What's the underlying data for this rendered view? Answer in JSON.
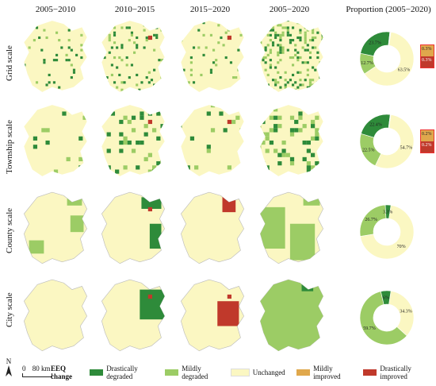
{
  "columns": [
    "2005−2010",
    "2010−2015",
    "2015−2020",
    "2005−2020",
    "Proportion (2005−2020)"
  ],
  "rows": [
    "Grid scale",
    "Township scale",
    "County scale",
    "City scale"
  ],
  "legend": {
    "title": "EEQ change",
    "items": [
      {
        "label": "Drastically degraded",
        "color": "#2e8b3a"
      },
      {
        "label": "Mildly degraded",
        "color": "#9ccc65"
      },
      {
        "label": "Unchanged",
        "color": "#fbf7c2"
      },
      {
        "label": "Mildly improved",
        "color": "#e0a84c"
      },
      {
        "label": "Drastically improved",
        "color": "#c0392b"
      }
    ]
  },
  "scale_bar": {
    "zero": "0",
    "label": "80 km"
  },
  "north_label": "N",
  "chart_data": [
    {
      "type": "pie",
      "name": "Grid scale",
      "slices": [
        {
          "label": "Unchanged",
          "value": 63.5,
          "text": "63.5%"
        },
        {
          "label": "Mildly degraded",
          "value": 12.7,
          "text": "12.7%"
        },
        {
          "label": "Drastically degraded",
          "value": 23.7,
          "text": "23.7%"
        },
        {
          "label": "Mildly improved",
          "value": 0.3,
          "text": "0.3%"
        },
        {
          "label": "Drastically improved",
          "value": 0.3,
          "text": "0.3%"
        }
      ]
    },
    {
      "type": "pie",
      "name": "Township scale",
      "slices": [
        {
          "label": "Unchanged",
          "value": 54.7,
          "text": "54.7%"
        },
        {
          "label": "Mildly degraded",
          "value": 22.5,
          "text": "22.5%"
        },
        {
          "label": "Drastically degraded",
          "value": 22.4,
          "text": "22.4%"
        },
        {
          "label": "Mildly improved",
          "value": 0.2,
          "text": "0.2%"
        },
        {
          "label": "Drastically improved",
          "value": 0.2,
          "text": "0.2%"
        }
      ]
    },
    {
      "type": "pie",
      "name": "County scale",
      "slices": [
        {
          "label": "Unchanged",
          "value": 70,
          "text": "70%"
        },
        {
          "label": "Mildly degraded",
          "value": 26.7,
          "text": "26.7%"
        },
        {
          "label": "Drastically degraded",
          "value": 3.3,
          "text": "3.3%"
        }
      ]
    },
    {
      "type": "pie",
      "name": "City scale",
      "slices": [
        {
          "label": "Unchanged",
          "value": 34.3,
          "text": "34.3%"
        },
        {
          "label": "Mildly degraded",
          "value": 59.7,
          "text": "59.7%"
        },
        {
          "label": "Drastically degraded",
          "value": 6.0,
          "text": "6%"
        }
      ]
    }
  ]
}
